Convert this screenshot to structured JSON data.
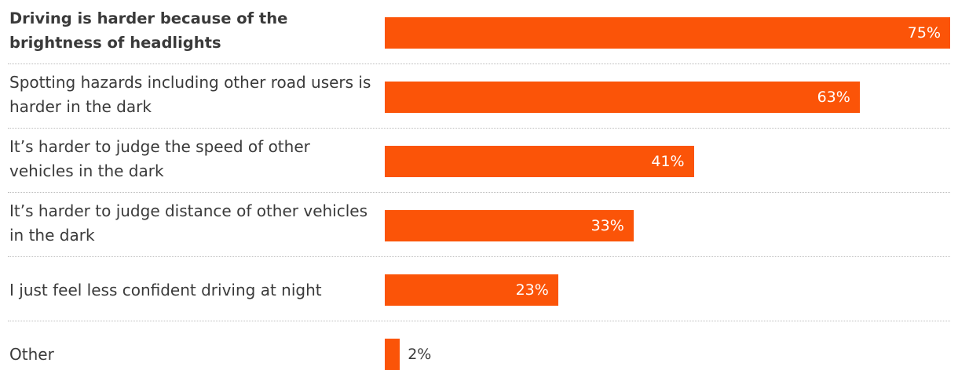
{
  "chart_data": {
    "type": "bar",
    "orientation": "horizontal",
    "color": "#fb5408",
    "categories": [
      "Driving is harder because of the brightness of headlights",
      "Spotting hazards including other road users is harder in the dark",
      "It’s harder to judge the speed of other vehicles in the dark",
      "It’s harder to judge distance of other vehicles in the dark",
      "I just feel less confident driving at night",
      "Other"
    ],
    "values": [
      75,
      63,
      41,
      33,
      23,
      2
    ],
    "value_labels": [
      "75%",
      "63%",
      "41%",
      "33%",
      "23%",
      "2%"
    ],
    "highlighted_category_index": 0,
    "xlim": [
      0,
      75
    ],
    "grid": false,
    "legend": "none"
  }
}
